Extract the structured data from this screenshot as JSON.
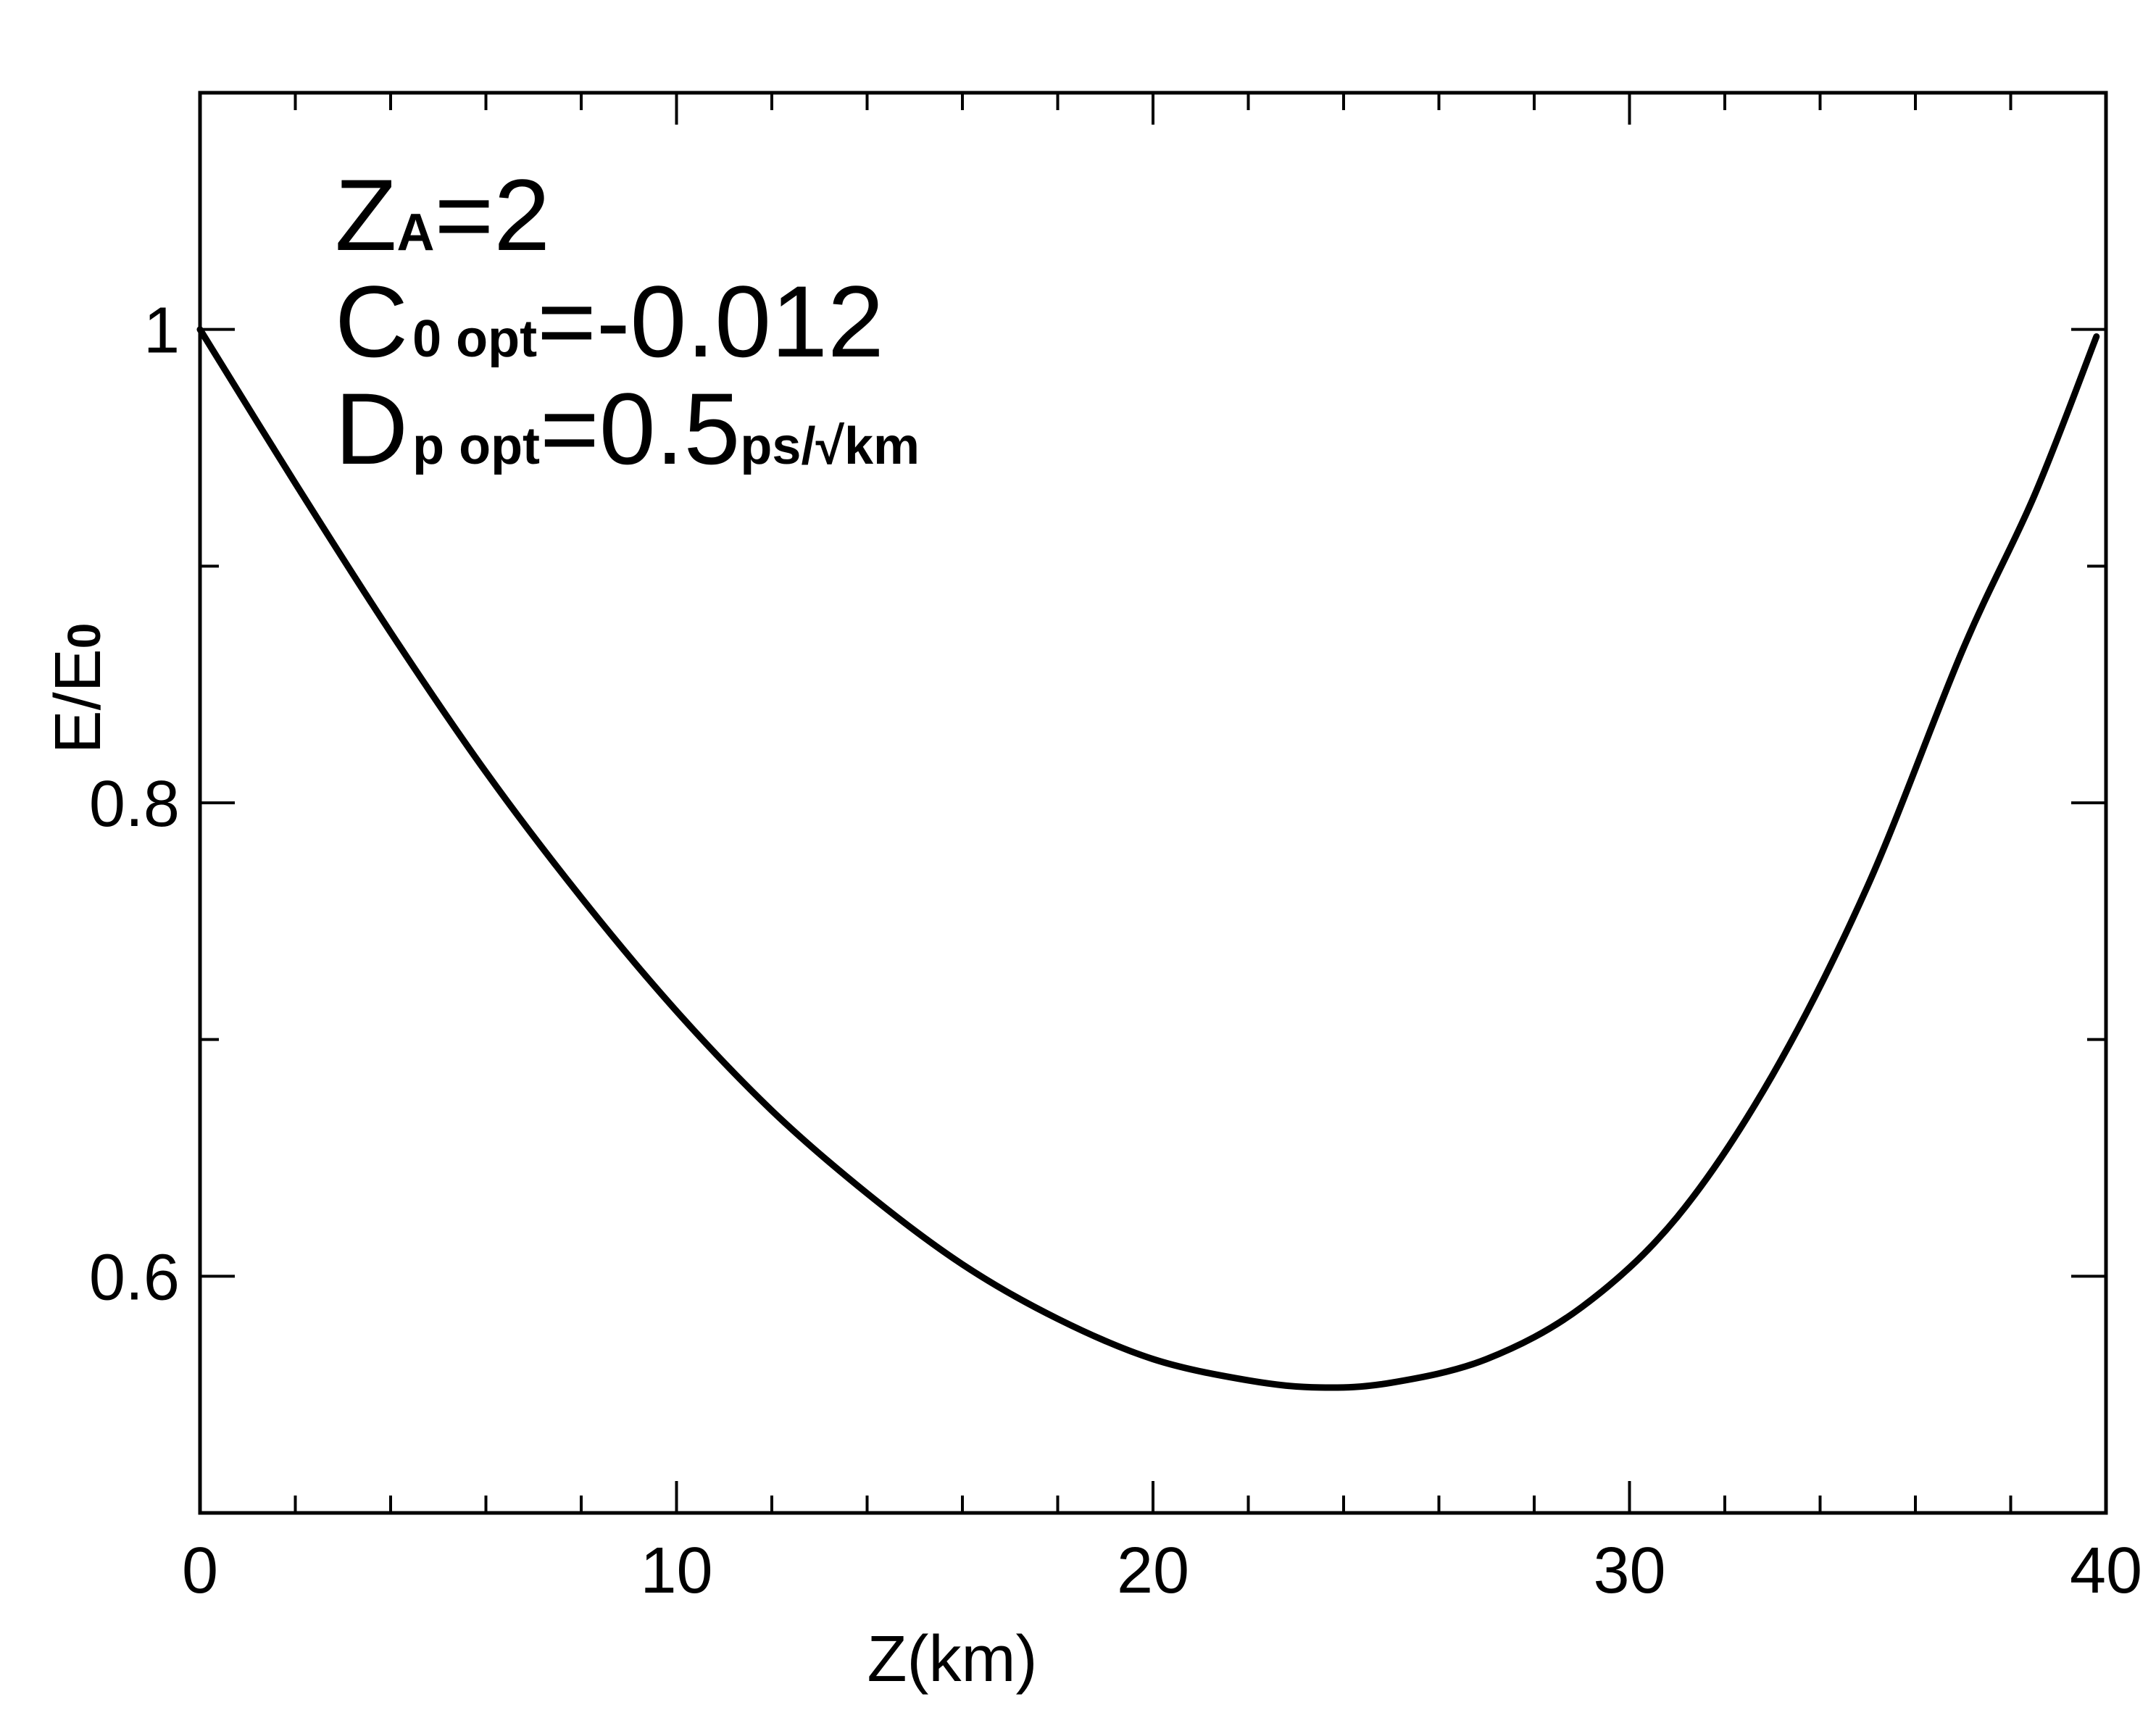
{
  "chart_data": {
    "type": "line",
    "title": "",
    "xlabel": "Z(km)",
    "ylabel": "E/E0",
    "ylabel_main": "E/E",
    "ylabel_sub": "0",
    "xlim": [
      0,
      40
    ],
    "ylim": [
      0.5,
      1.1
    ],
    "xticks": [
      0,
      10,
      20,
      30,
      40
    ],
    "xtick_labels": [
      "0",
      "10",
      "20",
      "30",
      "40"
    ],
    "yticks": [
      0.6,
      0.8,
      1.0
    ],
    "ytick_labels": [
      "0.6",
      "0.8",
      "1"
    ],
    "grid": false,
    "legend": "none",
    "line_color": "#000000",
    "annotations": [
      {
        "main": "Z",
        "sub": "A",
        "rest": "=2",
        "tail": ""
      },
      {
        "main": "C",
        "sub": "0 opt",
        "rest": "=-0.012",
        "tail": ""
      },
      {
        "main": "D",
        "sub": "p opt",
        "rest": "=0.5",
        "tail": "ps/√km"
      }
    ],
    "series": [
      {
        "x": [
          0,
          2,
          4,
          6,
          8,
          10,
          12,
          14,
          16,
          18,
          20,
          22,
          23.5,
          25,
          27,
          29,
          31,
          33,
          35,
          37,
          38.5,
          39.8
        ],
        "y": [
          1.0,
          0.935,
          0.872,
          0.813,
          0.76,
          0.712,
          0.67,
          0.635,
          0.605,
          0.582,
          0.565,
          0.556,
          0.553,
          0.555,
          0.565,
          0.587,
          0.625,
          0.685,
          0.765,
          0.865,
          0.93,
          0.997
        ]
      }
    ]
  }
}
